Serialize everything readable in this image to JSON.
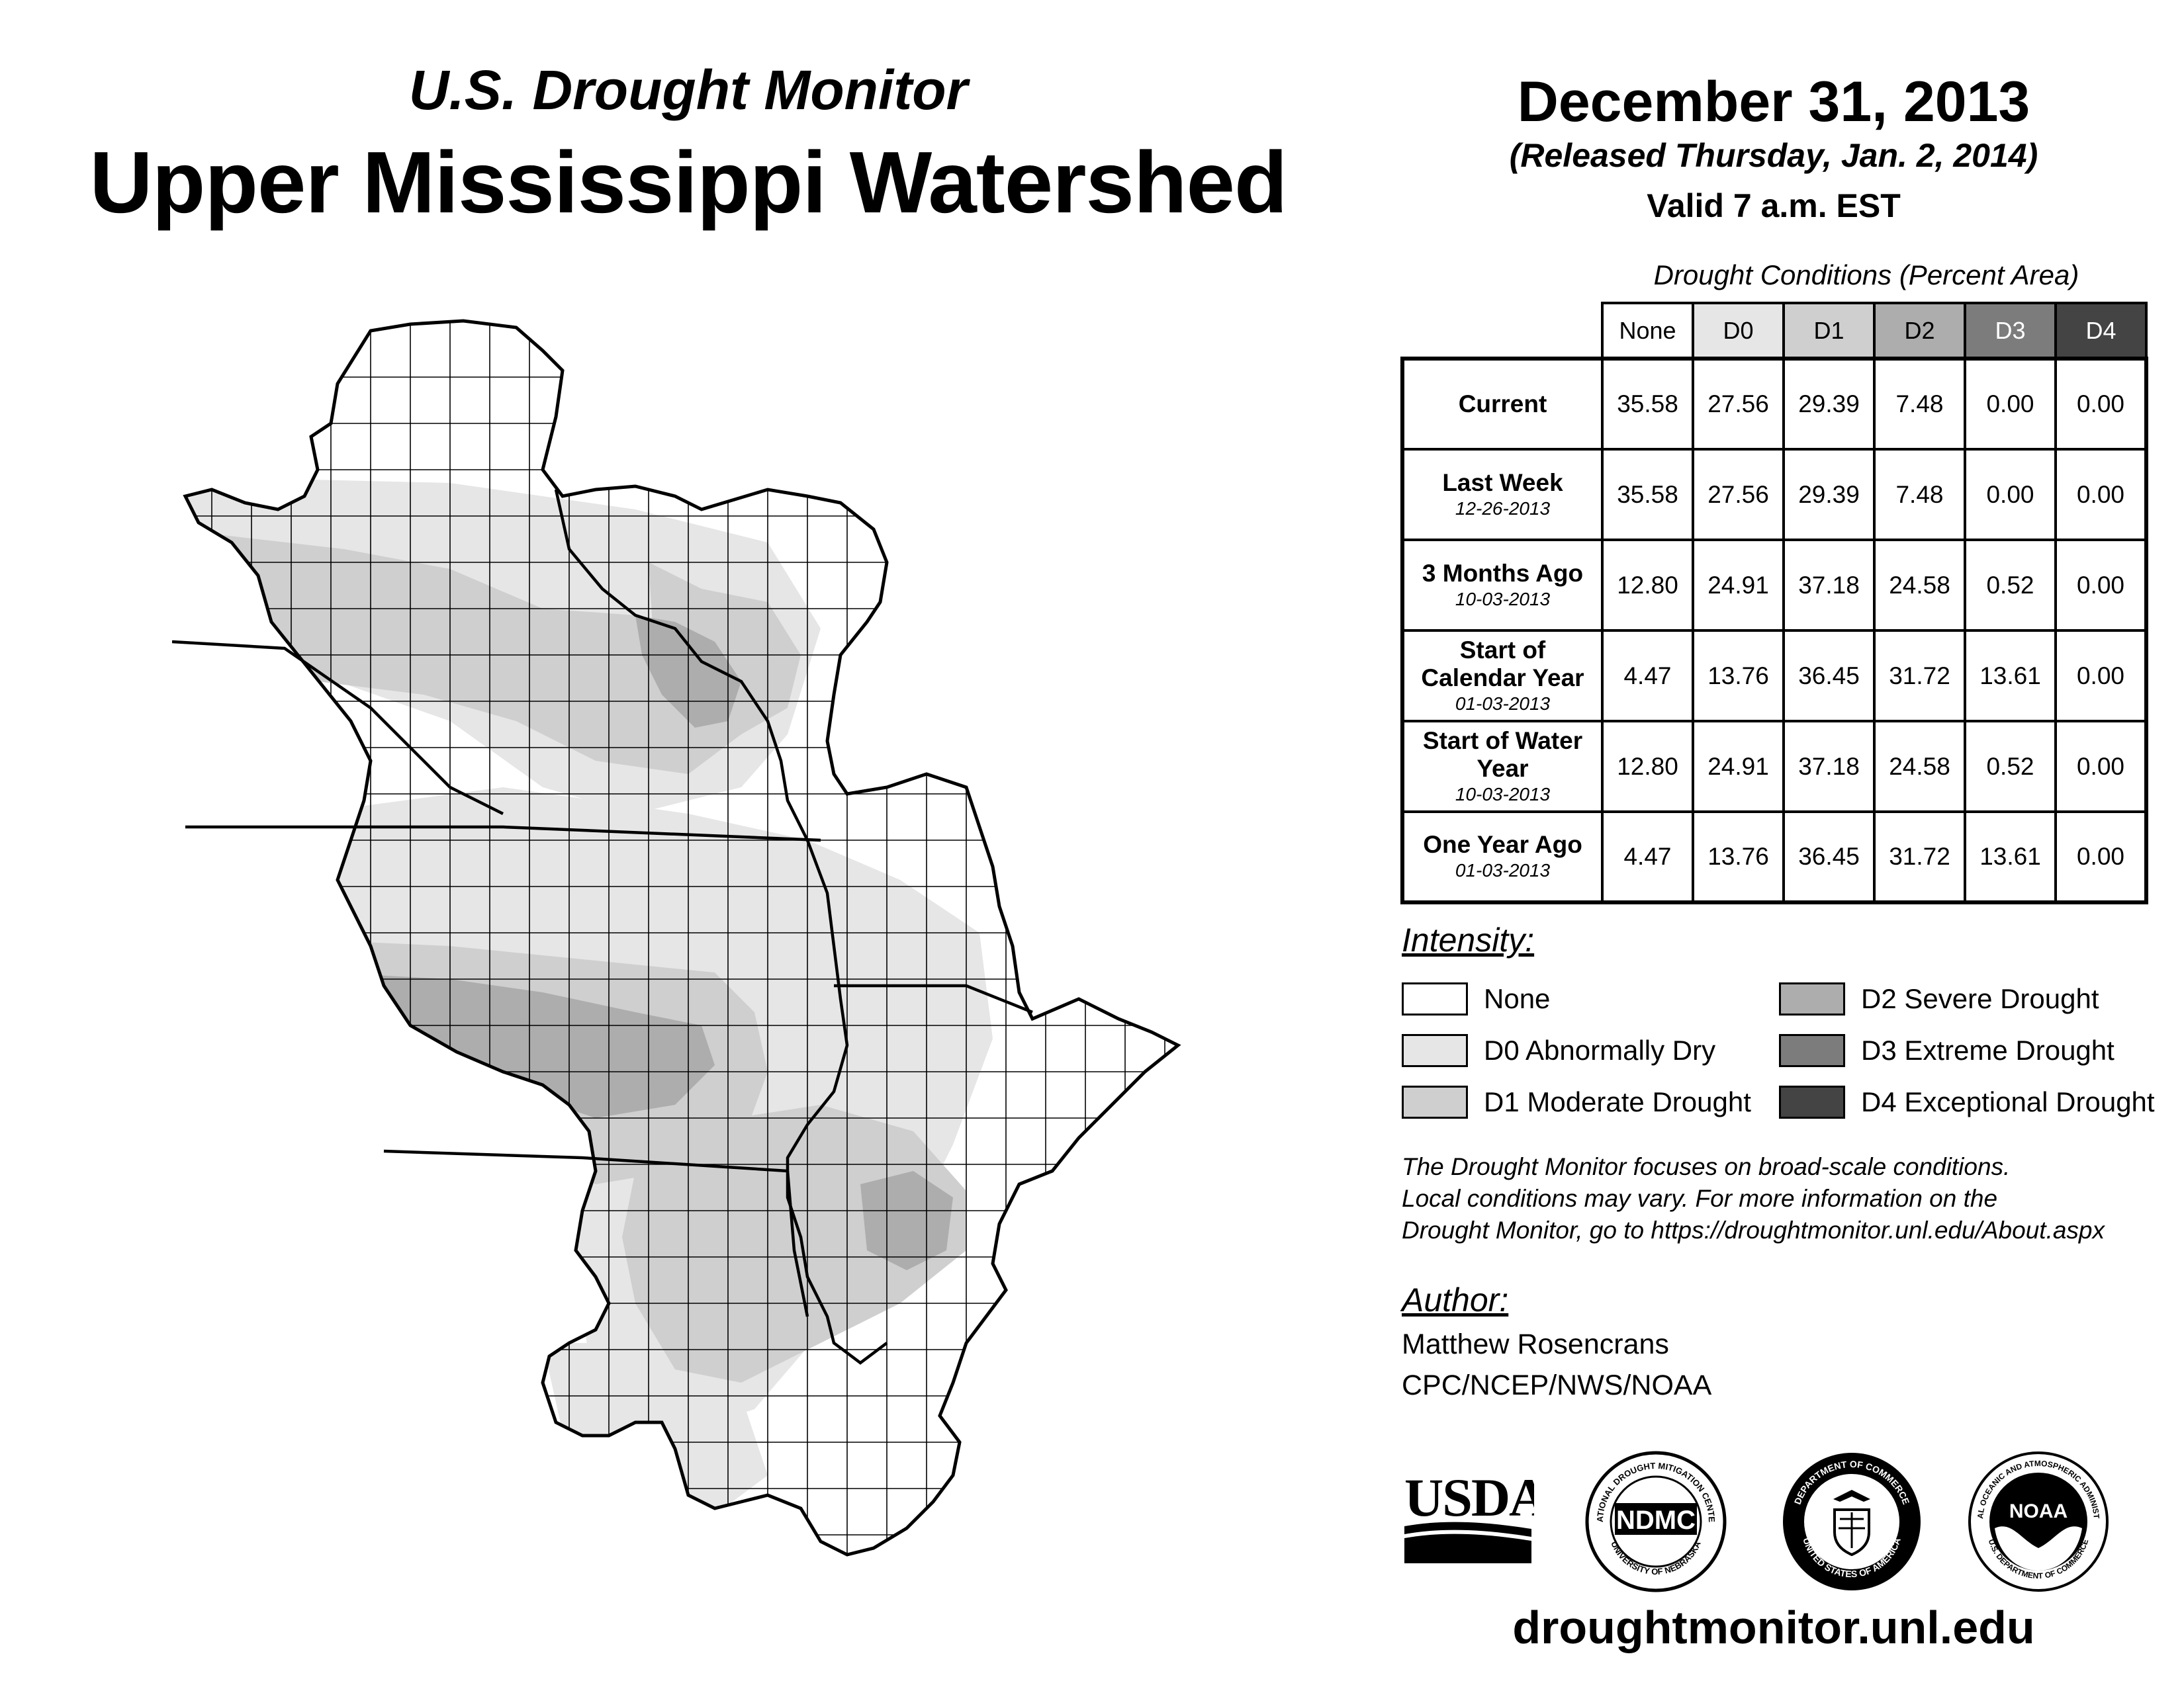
{
  "header": {
    "subtitle": "U.S. Drought Monitor",
    "title": "Upper Mississippi Watershed",
    "date": "December 31, 2013",
    "released": "(Released Thursday, Jan. 2, 2014)",
    "valid": "Valid 7 a.m. EST"
  },
  "table": {
    "caption": "Drought Conditions (Percent Area)",
    "columns": [
      "None",
      "D0",
      "D1",
      "D2",
      "D3",
      "D4"
    ],
    "rows": [
      {
        "label": "Current",
        "date": "",
        "values": [
          "35.58",
          "27.56",
          "29.39",
          "7.48",
          "0.00",
          "0.00"
        ]
      },
      {
        "label": "Last Week",
        "date": "12-26-2013",
        "values": [
          "35.58",
          "27.56",
          "29.39",
          "7.48",
          "0.00",
          "0.00"
        ]
      },
      {
        "label": "3 Months Ago",
        "date": "10-03-2013",
        "values": [
          "12.80",
          "24.91",
          "37.18",
          "24.58",
          "0.52",
          "0.00"
        ]
      },
      {
        "label": "Start of Calendar Year",
        "date": "01-03-2013",
        "values": [
          "4.47",
          "13.76",
          "36.45",
          "31.72",
          "13.61",
          "0.00"
        ]
      },
      {
        "label": "Start of Water Year",
        "date": "10-03-2013",
        "values": [
          "12.80",
          "24.91",
          "37.18",
          "24.58",
          "0.52",
          "0.00"
        ]
      },
      {
        "label": "One Year Ago",
        "date": "01-03-2013",
        "values": [
          "4.47",
          "13.76",
          "36.45",
          "31.72",
          "13.61",
          "0.00"
        ]
      }
    ]
  },
  "legend": {
    "title": "Intensity:",
    "items": [
      {
        "label": "None",
        "color": "#ffffff"
      },
      {
        "label": "D0 Abnormally Dry",
        "color": "#e6e6e6"
      },
      {
        "label": "D1 Moderate Drought",
        "color": "#cfcfcf"
      },
      {
        "label": "D2 Severe Drought",
        "color": "#adadad"
      },
      {
        "label": "D3 Extreme Drought",
        "color": "#7c7c7c"
      },
      {
        "label": "D4 Exceptional Drought",
        "color": "#444444"
      }
    ]
  },
  "note": {
    "line1": "The Drought Monitor focuses on broad-scale conditions.",
    "line2": "Local conditions may vary. For more information on the",
    "line3": "Drought Monitor, go to https://droughtmonitor.unl.edu/About.aspx"
  },
  "author": {
    "title": "Author:",
    "name": "Matthew Rosencrans",
    "org": "CPC/NCEP/NWS/NOAA"
  },
  "logos": {
    "usda": "USDA",
    "ndmc": "NDMC",
    "ndmc_ring_top": "NATIONAL DROUGHT MITIGATION CENTER",
    "ndmc_ring_bottom": "UNIVERSITY OF NEBRASKA",
    "doc_ring_top": "DEPARTMENT OF COMMERCE",
    "doc_ring_bottom": "UNITED STATES OF AMERICA",
    "noaa": "NOAA",
    "noaa_ring_top": "NATIONAL OCEANIC AND ATMOSPHERIC ADMINISTRATION",
    "noaa_ring_bottom": "U.S. DEPARTMENT OF COMMERCE"
  },
  "footer": {
    "site": "droughtmonitor.unl.edu"
  }
}
